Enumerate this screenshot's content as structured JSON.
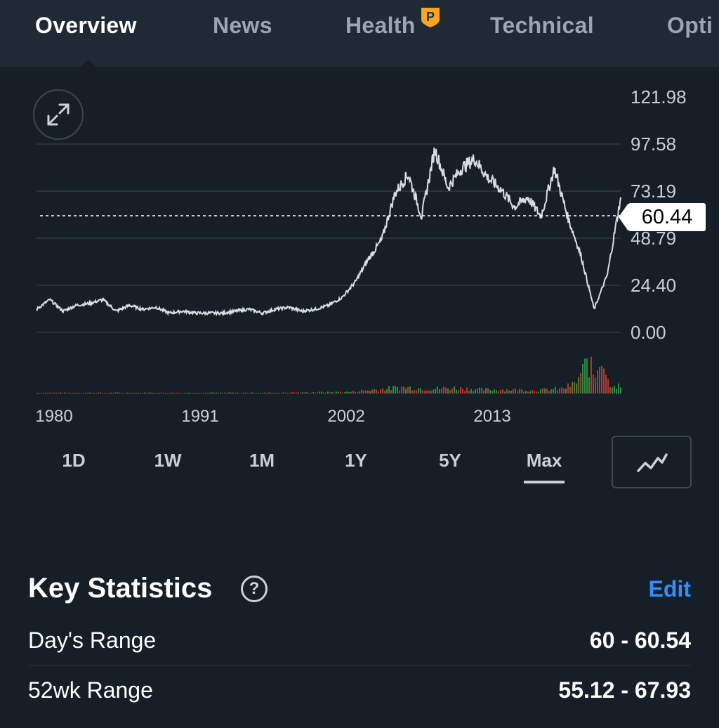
{
  "tabs": [
    {
      "label": "Overview",
      "active": true
    },
    {
      "label": "News",
      "active": false
    },
    {
      "label": "Health",
      "active": false,
      "badge_icon": "pro-badge-icon"
    },
    {
      "label": "Technical",
      "active": false
    },
    {
      "label": "Opti",
      "active": false
    }
  ],
  "chart": {
    "current_price": "60.44",
    "y_ticks": [
      "121.98",
      "97.58",
      "73.19",
      "48.79",
      "24.40",
      "0.00"
    ],
    "x_ticks": [
      "1980",
      "1991",
      "2002",
      "2013"
    ],
    "expand_icon": "expand-icon",
    "chart_type_icon": "line-chart-icon"
  },
  "chart_data": {
    "type": "line",
    "ylim": [
      0,
      121.98
    ],
    "xlim": [
      1978.5,
      2022.5
    ],
    "y_ticks": [
      0,
      24.4,
      48.79,
      73.19,
      97.58,
      121.98
    ],
    "x_ticks": [
      1980,
      1991,
      2002,
      2013
    ],
    "current_value": 60.44,
    "series": [
      {
        "x": [
          1978.5,
          1979.5,
          1980.5,
          1981.5,
          1982.5,
          1983.5,
          1984.5,
          1985.5,
          1986.5,
          1987.5,
          1988.5,
          1989.5,
          1990.5,
          1991.5,
          1992.5,
          1993.5,
          1994.5,
          1995.5,
          1996.5,
          1997.5,
          1998.5,
          1999.5,
          2000.5,
          2001.5,
          2002.5,
          2003.5,
          2004.5,
          2005.5,
          2006.5,
          2007.5,
          2008.5,
          2009.5,
          2010.5,
          2011.5,
          2012.5,
          2013.5,
          2014.5,
          2015.5,
          2016.5,
          2017.5,
          2018.5,
          2019.5,
          2020.5,
          2021.5,
          2022.5
        ],
        "values": [
          12,
          17,
          11,
          14,
          15,
          17,
          11,
          14,
          12,
          13,
          10,
          11,
          10,
          10,
          10,
          11,
          12,
          10,
          12,
          13,
          11,
          12,
          14,
          18,
          26,
          38,
          48,
          72,
          82,
          60,
          95,
          75,
          85,
          90,
          80,
          74,
          65,
          70,
          60,
          85,
          60,
          40,
          12,
          30,
          70
        ]
      }
    ],
    "volume_series": {
      "x": [
        1978.5,
        1984,
        1990,
        1996,
        2002,
        2004,
        2006,
        2008,
        2010,
        2012,
        2014,
        2016,
        2018,
        2019,
        2020,
        2020.5,
        2021,
        2021.5,
        2022.5
      ],
      "values": [
        1,
        1,
        1,
        1,
        2,
        5,
        8,
        6,
        7,
        5,
        5,
        4,
        6,
        12,
        40,
        20,
        55,
        15,
        8
      ]
    }
  },
  "ranges": [
    {
      "label": "1D"
    },
    {
      "label": "1W"
    },
    {
      "label": "1M"
    },
    {
      "label": "1Y"
    },
    {
      "label": "5Y"
    },
    {
      "label": "Max",
      "active": true
    }
  ],
  "stats": {
    "title": "Key Statistics",
    "edit_label": "Edit",
    "help_glyph": "?",
    "rows": [
      {
        "label": "Day's Range",
        "value": "60 - 60.54"
      },
      {
        "label": "52wk Range",
        "value": "55.12 - 67.93"
      }
    ]
  },
  "colors": {
    "background": "#161f28",
    "tabbar": "#1f2a35",
    "accent": "#2e8fff",
    "badge": "#f5a623",
    "line": "#d9dde1",
    "volume_up": "#2e8b3e",
    "volume_down": "#b03a2e"
  }
}
